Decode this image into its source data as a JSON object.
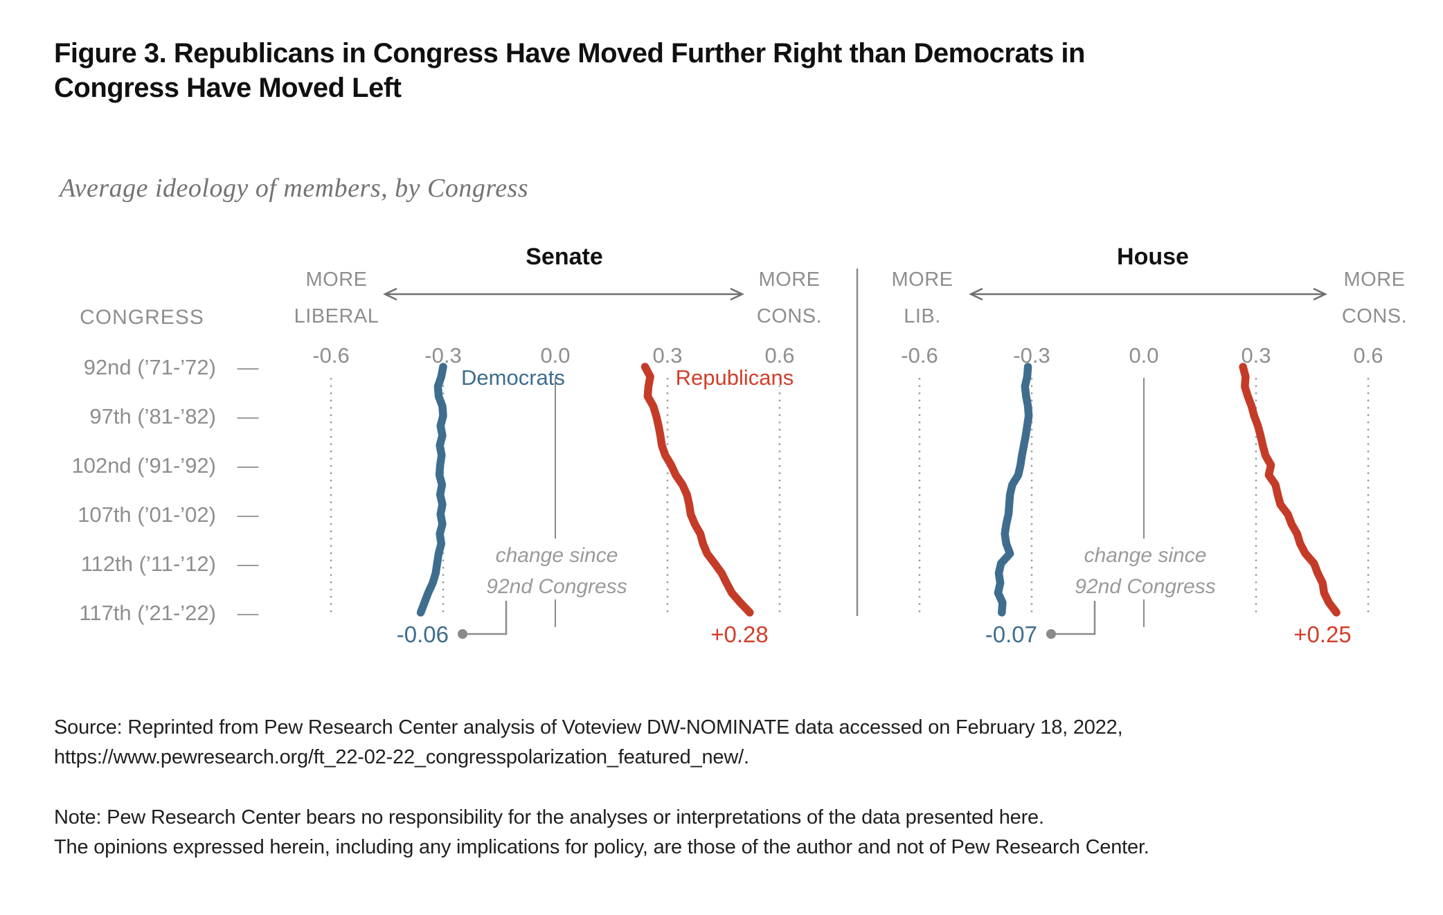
{
  "title": "Figure 3. Republicans in Congress Have Moved Further Right than Democrats in\nCongress Have Moved Left",
  "subtitle": "Average ideology of members, by Congress",
  "colors": {
    "democrat": "#3E6D8E",
    "republican": "#C43B28",
    "republican_label": "#D23E2A",
    "grid_dotted": "#9B9B9B",
    "axis_line": "#8A8A8A",
    "text_gray": "#8E8E8E",
    "annotation_gray": "#9A9A9A",
    "title_text": "#101010"
  },
  "congress_axis": {
    "header": "CONGRESS",
    "labeled_congresses": [
      92,
      97,
      102,
      107,
      112,
      117
    ],
    "tick_labels": [
      "92nd (’71-’72)",
      "97th (’81-’82)",
      "102nd (’91-’92)",
      "107th (’01-’02)",
      "112th (’11-’12)",
      "117th (’21-’22)"
    ],
    "tick_dash": "—"
  },
  "chart_data": [
    {
      "type": "line",
      "title": "Senate",
      "orientation": "vertical-time",
      "xlim": [
        -0.75,
        0.75
      ],
      "x_ticks": [
        "-0.6",
        "-0.3",
        "0.0",
        "0.3",
        "0.6"
      ],
      "x_tick_values": [
        -0.6,
        -0.3,
        0.0,
        0.3,
        0.6
      ],
      "direction_left": [
        "MORE",
        "LIBERAL"
      ],
      "direction_right": [
        "MORE",
        "CONS."
      ],
      "annotation": "change since\n92nd Congress",
      "categories": [
        92,
        93,
        94,
        95,
        96,
        97,
        98,
        99,
        100,
        101,
        102,
        103,
        104,
        105,
        106,
        107,
        108,
        109,
        110,
        111,
        112,
        113,
        114,
        115,
        116,
        117
      ],
      "series": [
        {
          "name": "Democrats",
          "show_name_label": true,
          "color": "#3E6D8E",
          "change_label": "-0.06",
          "values": [
            -0.3,
            -0.305,
            -0.314,
            -0.312,
            -0.302,
            -0.3,
            -0.307,
            -0.302,
            -0.309,
            -0.304,
            -0.308,
            -0.31,
            -0.303,
            -0.308,
            -0.302,
            -0.307,
            -0.302,
            -0.309,
            -0.305,
            -0.312,
            -0.316,
            -0.32,
            -0.328,
            -0.34,
            -0.35,
            -0.36
          ]
        },
        {
          "name": "Republicans",
          "show_name_label": true,
          "color": "#C43B28",
          "change_label": "+0.28",
          "values": [
            0.24,
            0.254,
            0.249,
            0.247,
            0.262,
            0.27,
            0.276,
            0.281,
            0.285,
            0.294,
            0.31,
            0.322,
            0.34,
            0.352,
            0.358,
            0.362,
            0.373,
            0.388,
            0.395,
            0.406,
            0.426,
            0.445,
            0.458,
            0.472,
            0.495,
            0.52
          ]
        }
      ]
    },
    {
      "type": "line",
      "title": "House",
      "orientation": "vertical-time",
      "xlim": [
        -0.75,
        0.75
      ],
      "x_ticks": [
        "-0.6",
        "-0.3",
        "0.0",
        "0.3",
        "0.6"
      ],
      "x_tick_values": [
        -0.6,
        -0.3,
        0.0,
        0.3,
        0.6
      ],
      "direction_left": [
        "MORE",
        "LIB."
      ],
      "direction_right": [
        "MORE",
        "CONS."
      ],
      "annotation": "change since\n92nd Congress",
      "categories": [
        92,
        93,
        94,
        95,
        96,
        97,
        98,
        99,
        100,
        101,
        102,
        103,
        104,
        105,
        106,
        107,
        108,
        109,
        110,
        111,
        112,
        113,
        114,
        115,
        116,
        117
      ],
      "series": [
        {
          "name": "Democrats",
          "show_name_label": false,
          "color": "#3E6D8E",
          "change_label": "-0.07",
          "values": [
            -0.31,
            -0.312,
            -0.318,
            -0.315,
            -0.31,
            -0.308,
            -0.312,
            -0.316,
            -0.321,
            -0.326,
            -0.33,
            -0.336,
            -0.352,
            -0.358,
            -0.36,
            -0.362,
            -0.368,
            -0.372,
            -0.368,
            -0.358,
            -0.382,
            -0.388,
            -0.384,
            -0.39,
            -0.378,
            -0.38
          ]
        },
        {
          "name": "Republicans",
          "show_name_label": false,
          "color": "#C43B28",
          "change_label": "+0.25",
          "values": [
            0.265,
            0.272,
            0.27,
            0.278,
            0.288,
            0.295,
            0.305,
            0.312,
            0.318,
            0.325,
            0.34,
            0.334,
            0.352,
            0.358,
            0.365,
            0.385,
            0.395,
            0.41,
            0.418,
            0.432,
            0.455,
            0.465,
            0.478,
            0.482,
            0.495,
            0.515
          ]
        }
      ]
    }
  ],
  "source": {
    "text": "Source: Reprinted from Pew Research Center analysis of Voteview DW-NOMINATE data accessed on February 18, 2022,\nhttps://www.pewresearch.org/ft_22-02-22_congresspolarization_featured_new/."
  },
  "note": {
    "text": "Note: Pew Research Center bears no responsibility for the analyses or interpretations of the data presented here.\nThe opinions expressed herein, including any implications for policy, are those of the author and not of Pew Research Center."
  }
}
